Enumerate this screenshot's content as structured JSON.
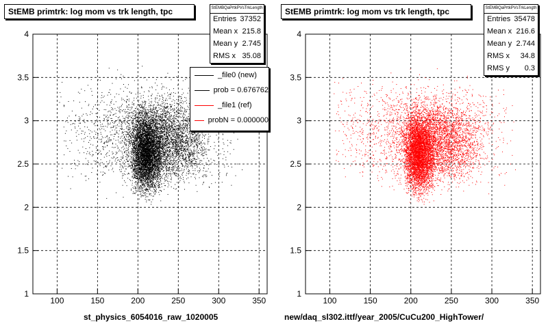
{
  "panels": [
    {
      "title": "StEMB primtrk: log mom vs trk length, tpc",
      "stats_name": "StEMBQaPrtkPVsTrkLength",
      "stats": [
        {
          "label": "Entries",
          "value": "37352"
        },
        {
          "label": "Mean x",
          "value": "215.8"
        },
        {
          "label": "Mean y",
          "value": "2.745"
        },
        {
          "label": "RMS x",
          "value": "35.08"
        }
      ],
      "xcaption": "st_physics_6054016_raw_1020005",
      "color": "#000000"
    },
    {
      "title": "StEMB primtrk: log mom vs trk length, tpc",
      "stats_name": "StEMBQaPrtkPVsTrkLength",
      "stats": [
        {
          "label": "Entries",
          "value": "35478"
        },
        {
          "label": "Mean x",
          "value": "216.6"
        },
        {
          "label": "Mean y",
          "value": "2.744"
        },
        {
          "label": "RMS x",
          "value": "34.8"
        },
        {
          "label": "RMS y",
          "value": "0.3"
        }
      ],
      "xcaption": "new/daq_sl302.ittf/year_2005/CuCu200_HighTower/",
      "color": "#ff0000"
    }
  ],
  "legend": [
    {
      "label": "_file0 (new)",
      "color": "#000000"
    },
    {
      "label": "prob = 0.676762",
      "color": "#000000"
    },
    {
      "label": "_file1 (ref)",
      "color": "#ff0000"
    },
    {
      "label": "probN = 0.000000",
      "color": "#ff0000"
    }
  ],
  "chart_data": [
    {
      "type": "scatter",
      "title": "StEMB primtrk: log mom vs trk length, tpc",
      "xlabel": "st_physics_6054016_raw_1020005",
      "ylabel": "",
      "xlim": [
        70,
        360
      ],
      "ylim": [
        1,
        4
      ],
      "xticks": [
        100,
        150,
        200,
        250,
        300,
        350
      ],
      "yticks": [
        1,
        1.5,
        2,
        2.5,
        3,
        3.5,
        4
      ],
      "grid": true,
      "series": [
        {
          "name": "_file0 (new)",
          "color": "#000000",
          "density_regions": [
            {
              "x": [
                190,
                230
              ],
              "y": [
                2.0,
                3.25
              ],
              "weight": 0.45
            },
            {
              "x": [
                175,
                290
              ],
              "y": [
                2.1,
                3.4
              ],
              "weight": 0.35
            },
            {
              "x": [
                100,
                330
              ],
              "y": [
                2.05,
                3.7
              ],
              "weight": 0.2
            }
          ]
        }
      ]
    },
    {
      "type": "scatter",
      "title": "StEMB primtrk: log mom vs trk length, tpc",
      "xlabel": "new/daq_sl302.ittf/year_2005/CuCu200_HighTower/",
      "ylabel": "",
      "xlim": [
        70,
        360
      ],
      "ylim": [
        1,
        4
      ],
      "xticks": [
        100,
        150,
        200,
        250,
        300,
        350
      ],
      "yticks": [
        1,
        1.5,
        2,
        2.5,
        3,
        3.5,
        4
      ],
      "grid": true,
      "series": [
        {
          "name": "_file1 (ref)",
          "color": "#ff0000",
          "density_regions": [
            {
              "x": [
                190,
                230
              ],
              "y": [
                2.0,
                3.25
              ],
              "weight": 0.45
            },
            {
              "x": [
                175,
                290
              ],
              "y": [
                2.1,
                3.4
              ],
              "weight": 0.35
            },
            {
              "x": [
                100,
                330
              ],
              "y": [
                2.05,
                3.7
              ],
              "weight": 0.2
            }
          ]
        }
      ]
    }
  ]
}
